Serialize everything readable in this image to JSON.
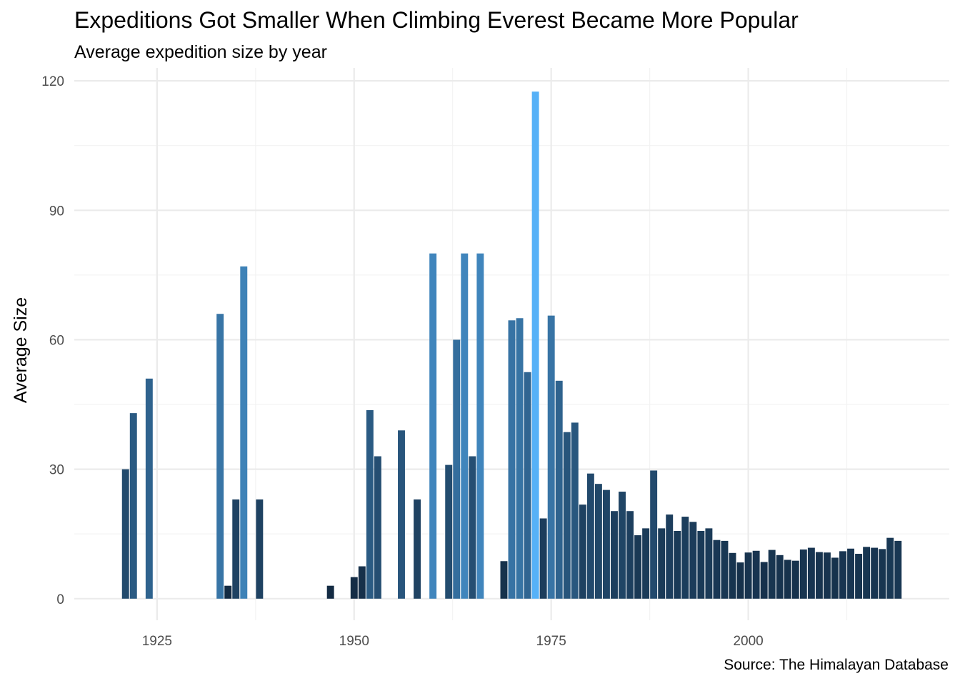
{
  "chart_data": {
    "type": "bar",
    "title": "Expeditions Got Smaller When Climbing Everest Became More Popular",
    "subtitle": "Average expedition size by year",
    "caption": "Source: The Himalayan Database",
    "xlabel": "",
    "ylabel": "Average Size",
    "xlim": [
      1914.5,
      2025.5
    ],
    "ylim": [
      -5,
      123
    ],
    "x_ticks": [
      1925,
      1950,
      1975,
      2000
    ],
    "y_ticks": [
      0,
      30,
      60,
      90,
      120
    ],
    "grid": true,
    "legend": "none",
    "fill_scale": {
      "low": "#132b43",
      "high": "#56b1f7",
      "min": 3,
      "max": 117.5
    },
    "x": [
      1921,
      1922,
      1924,
      1933,
      1934,
      1935,
      1936,
      1938,
      1947,
      1950,
      1951,
      1952,
      1953,
      1956,
      1958,
      1960,
      1962,
      1963,
      1964,
      1965,
      1966,
      1969,
      1970,
      1971,
      1972,
      1973,
      1974,
      1975,
      1976,
      1977,
      1978,
      1979,
      1980,
      1981,
      1982,
      1983,
      1984,
      1985,
      1986,
      1987,
      1988,
      1989,
      1990,
      1991,
      1992,
      1993,
      1994,
      1995,
      1996,
      1997,
      1998,
      1999,
      2000,
      2001,
      2002,
      2003,
      2004,
      2005,
      2006,
      2007,
      2008,
      2009,
      2010,
      2011,
      2012,
      2013,
      2014,
      2015,
      2016,
      2017,
      2018,
      2019
    ],
    "values": [
      30,
      43,
      51,
      66,
      3,
      23,
      77,
      23,
      3,
      5,
      7.5,
      43.7,
      33,
      39,
      23,
      80,
      31,
      60,
      80,
      33,
      80,
      8.7,
      64.5,
      65,
      52.5,
      117.5,
      18.6,
      65.6,
      50.5,
      38.6,
      40.8,
      21.8,
      29,
      26.6,
      25.2,
      20.3,
      24.8,
      20.3,
      14.7,
      16.3,
      29.7,
      16.3,
      19.5,
      15.7,
      19,
      17.8,
      15.7,
      16.3,
      13.6,
      13.4,
      10.6,
      8.4,
      10.7,
      11.1,
      8.5,
      11.3,
      10.1,
      9,
      8.8,
      11.4,
      11.8,
      10.8,
      10.7,
      9.5,
      11,
      11.6,
      10.4,
      12,
      11.8,
      11.5,
      14.1,
      13.4
    ]
  }
}
